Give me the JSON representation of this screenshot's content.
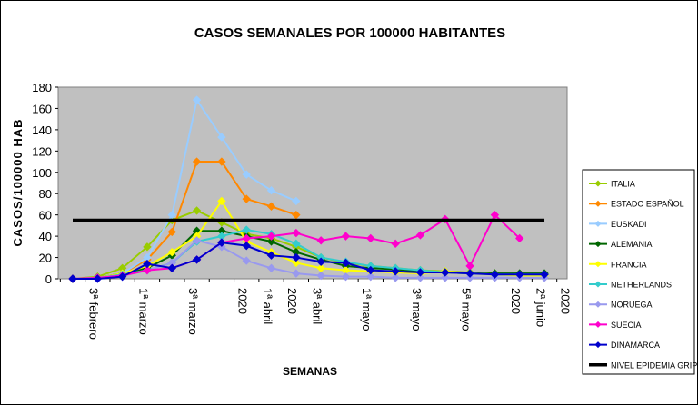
{
  "chart_data": {
    "type": "line",
    "title": "CASOS SEMANALES POR 100000 HABITANTES",
    "xlabel": "SEMANAS",
    "ylabel": "CASOS/100000 HAB",
    "ylim": [
      0,
      180
    ],
    "yticks": [
      "0",
      "20",
      "40",
      "60",
      "80",
      "100",
      "120",
      "140",
      "160",
      "180"
    ],
    "grid": false,
    "legend_position": "right",
    "x_tick_labels": [
      {
        "text": "3ª febrero",
        "index": 0.5
      },
      {
        "text": "1ª marzo",
        "index": 2.5
      },
      {
        "text": "3ª marzo",
        "index": 4.5
      },
      {
        "text": "2020",
        "index": 6.5
      },
      {
        "text": "1ª abril",
        "index": 7.5
      },
      {
        "text": "2020",
        "index": 8.5
      },
      {
        "text": "3ª abril",
        "index": 9.5
      },
      {
        "text": "1ª mayo",
        "index": 11.5
      },
      {
        "text": "3ª mayo",
        "index": 13.5
      },
      {
        "text": "5ª mayo",
        "index": 15.5
      },
      {
        "text": "2020",
        "index": 17.5
      },
      {
        "text": "2ª junio",
        "index": 18.5
      },
      {
        "text": "2020",
        "index": 19.5
      },
      {
        "text": "4ª junio",
        "index": 20.5
      }
    ],
    "n_points": 20,
    "series": [
      {
        "name": "ITALIA",
        "color": "#99cc00",
        "marker": "diamond",
        "values": [
          0,
          2,
          10,
          30,
          55,
          64,
          53,
          42,
          38,
          30,
          20,
          15,
          12,
          10,
          8,
          7,
          6,
          5,
          4,
          4
        ]
      },
      {
        "name": "ESTADO ESPAÑOL",
        "color": "#ff8800",
        "marker": "diamond",
        "values": [
          0,
          1,
          5,
          18,
          44,
          110,
          110,
          75,
          68,
          60,
          null,
          null,
          null,
          null,
          null,
          null,
          null,
          null,
          null,
          null
        ]
      },
      {
        "name": "EUSKADI",
        "color": "#99ccff",
        "marker": "diamond",
        "values": [
          0,
          1,
          5,
          20,
          60,
          168,
          133,
          98,
          83,
          73,
          null,
          null,
          null,
          null,
          null,
          null,
          null,
          null,
          null,
          null
        ]
      },
      {
        "name": "ALEMANIA",
        "color": "#006600",
        "marker": "diamond",
        "values": [
          0,
          1,
          5,
          10,
          22,
          45,
          45,
          40,
          35,
          25,
          18,
          12,
          10,
          9,
          7,
          6,
          5,
          5,
          5,
          5
        ]
      },
      {
        "name": "FRANCIA",
        "color": "#ffff00",
        "marker": "diamond",
        "values": [
          0,
          1,
          5,
          12,
          25,
          40,
          73,
          35,
          25,
          15,
          10,
          8,
          7,
          6,
          5,
          7,
          5,
          4,
          3,
          3
        ]
      },
      {
        "name": "NETHERLANDS",
        "color": "#33cccc",
        "marker": "diamond",
        "values": [
          0,
          1,
          4,
          8,
          15,
          35,
          40,
          46,
          42,
          33,
          20,
          16,
          12,
          10,
          8,
          6,
          5,
          4,
          4,
          4
        ]
      },
      {
        "name": "NORUEGA",
        "color": "#9999ee",
        "marker": "diamond",
        "values": [
          0,
          1,
          3,
          8,
          15,
          36,
          30,
          17,
          10,
          5,
          3,
          2,
          2,
          1,
          1,
          1,
          1,
          1,
          1,
          1
        ]
      },
      {
        "name": "SUECIA",
        "color": "#ff00cc",
        "marker": "diamond",
        "values": [
          0,
          1,
          3,
          8,
          10,
          18,
          34,
          38,
          40,
          43,
          36,
          40,
          38,
          33,
          41,
          56,
          12,
          60,
          38,
          null
        ]
      },
      {
        "name": "DINAMARCA",
        "color": "#0000cc",
        "marker": "diamond",
        "values": [
          0,
          0,
          2,
          14,
          10,
          18,
          34,
          31,
          22,
          20,
          16,
          15,
          8,
          7,
          6,
          6,
          5,
          4,
          4,
          4
        ]
      },
      {
        "name": "NIVEL EPIDEMIA GRIPE",
        "color": "#000000",
        "marker": "none",
        "line_only": true,
        "values": [
          55,
          55,
          55,
          55,
          55,
          55,
          55,
          55,
          55,
          55,
          55,
          55,
          55,
          55,
          55,
          55,
          55,
          55,
          55,
          55
        ]
      }
    ]
  }
}
